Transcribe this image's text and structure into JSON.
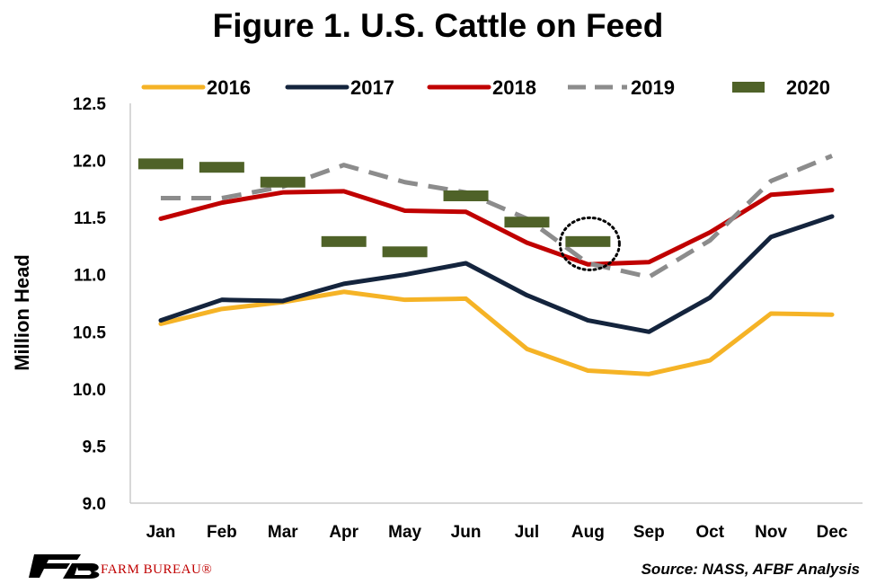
{
  "header": {
    "title": "Figure 1. U.S. Cattle on Feed"
  },
  "footer": {
    "brand": "FARM BUREAU®",
    "source": "Source: NASS, AFBF Analysis"
  },
  "chart_data": {
    "type": "line",
    "title": "Figure 1. U.S. Cattle on Feed",
    "xlabel": "",
    "ylabel": "Million Head",
    "ylim": [
      9.0,
      12.5
    ],
    "yticks": [
      "9.0",
      "9.5",
      "10.0",
      "10.5",
      "11.0",
      "11.5",
      "12.0",
      "12.5"
    ],
    "grid": false,
    "legend_position": "top",
    "categories": [
      "Jan",
      "Feb",
      "Mar",
      "Apr",
      "May",
      "Jun",
      "Jul",
      "Aug",
      "Sep",
      "Oct",
      "Nov",
      "Dec"
    ],
    "series": [
      {
        "name": "2016",
        "color": "#f5b326",
        "style": "solid",
        "values": [
          10.57,
          10.7,
          10.76,
          10.85,
          10.78,
          10.79,
          10.35,
          10.16,
          10.13,
          10.25,
          10.66,
          10.65
        ]
      },
      {
        "name": "2017",
        "color": "#14243d",
        "style": "solid",
        "values": [
          10.6,
          10.78,
          10.77,
          10.92,
          11.0,
          11.1,
          10.82,
          10.6,
          10.5,
          10.8,
          11.33,
          11.51
        ]
      },
      {
        "name": "2018",
        "color": "#c00000",
        "style": "solid",
        "values": [
          11.49,
          11.63,
          11.72,
          11.73,
          11.56,
          11.55,
          11.28,
          11.09,
          11.11,
          11.37,
          11.7,
          11.74
        ]
      },
      {
        "name": "2019",
        "color": "#8c8c8c",
        "style": "dashed",
        "values": [
          11.67,
          11.67,
          11.77,
          11.96,
          11.81,
          11.72,
          11.49,
          11.1,
          10.98,
          11.3,
          11.82,
          12.04
        ]
      },
      {
        "name": "2020",
        "color": "#4f6228",
        "style": "marker",
        "values": [
          11.97,
          11.94,
          11.81,
          11.29,
          11.2,
          11.69,
          11.46,
          11.29,
          null,
          null,
          null,
          null
        ]
      }
    ],
    "annotations": [
      {
        "type": "dotted-circle",
        "category": "Aug",
        "value": 11.27
      }
    ]
  }
}
